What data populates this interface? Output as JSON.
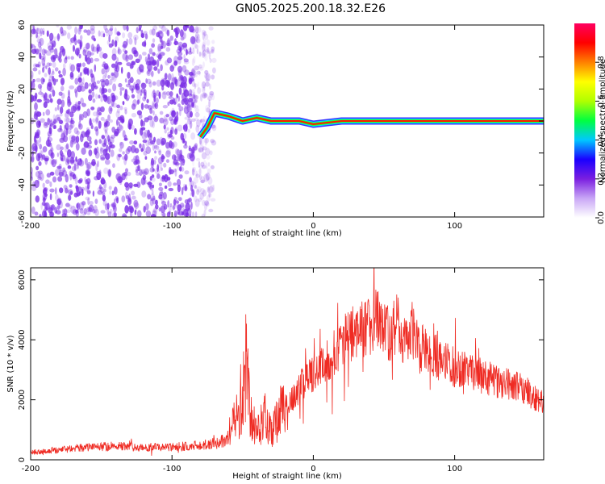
{
  "title": "GN05.2025.200.18.32.E26",
  "colors": {
    "snr_line": "#ef2b23",
    "spectrum_cloud": "#7b2fe6",
    "axis": "#000000"
  },
  "colormap": [
    "#ffffff",
    "#c9a7f6",
    "#7b1fe0",
    "#1a00ff",
    "#00c8ff",
    "#00ff40",
    "#b0ff00",
    "#ffff00",
    "#ff8000",
    "#ff0000",
    "#ff0060"
  ],
  "chart_data": [
    {
      "type": "heatmap",
      "xlabel": "Height of straight line (km)",
      "ylabel": "Frequency (Hz)",
      "xlim": [
        -200,
        163
      ],
      "ylim": [
        -60,
        60
      ],
      "xticks": [
        -200,
        -100,
        0,
        100
      ],
      "yticks": [
        -60,
        -40,
        -20,
        0,
        20,
        40,
        60
      ],
      "colorbar": {
        "label": "Normalized spectral amplitude",
        "range": [
          0,
          1
        ],
        "ticks": [
          0.0,
          0.2,
          0.4,
          0.6,
          0.8
        ]
      },
      "noise_region_x": [
        -200,
        -70
      ],
      "ridge": {
        "x": [
          -80,
          -75,
          -70,
          -60,
          -50,
          -40,
          -30,
          -20,
          -10,
          0,
          20,
          50,
          95,
          100,
          163
        ],
        "y": [
          -10,
          -4,
          5,
          3,
          0,
          2,
          0,
          0,
          0,
          -2,
          0,
          0,
          0,
          0,
          0
        ]
      }
    },
    {
      "type": "line",
      "xlabel": "Height of straight line (km)",
      "ylabel": "SNR (10 * v/v)",
      "xlim": [
        -200,
        163
      ],
      "ylim": [
        0,
        6400
      ],
      "xticks": [
        -200,
        -100,
        0,
        100
      ],
      "yticks": [
        0,
        2000,
        4000,
        6000
      ],
      "series": [
        {
          "x": [
            -200,
            -180,
            -160,
            -140,
            -120,
            -100,
            -80,
            -70,
            -60,
            -55,
            -50,
            -47,
            -45,
            -40,
            -35,
            -30,
            -25,
            -22,
            -20,
            -15,
            -10,
            -5,
            0,
            10,
            20,
            30,
            40,
            45,
            50,
            55,
            60,
            65,
            70,
            75,
            80,
            90,
            100,
            110,
            120,
            130,
            140,
            150,
            163
          ],
          "y": [
            250,
            330,
            420,
            450,
            420,
            420,
            500,
            520,
            700,
            1400,
            2000,
            3500,
            1500,
            900,
            1500,
            1000,
            1300,
            1800,
            1900,
            2000,
            2400,
            2700,
            2900,
            3300,
            3900,
            4300,
            4400,
            4700,
            4300,
            4200,
            4600,
            3900,
            4400,
            3600,
            3800,
            3300,
            3100,
            2900,
            2800,
            2600,
            2500,
            2300,
            1900
          ]
        }
      ]
    }
  ]
}
